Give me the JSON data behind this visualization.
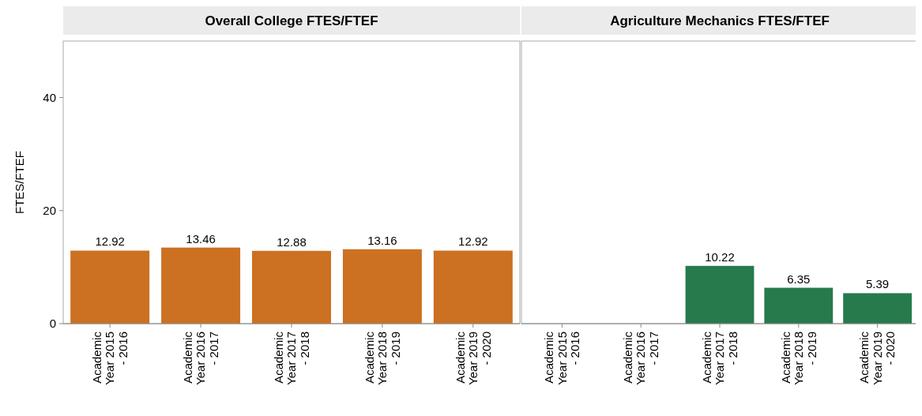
{
  "chart_data": [
    {
      "type": "bar",
      "title": "Overall College FTES/FTEF",
      "ylabel": "FTES/FTEF",
      "categories": [
        "Academic Year 2015 - 2016",
        "Academic Year 2016 - 2017",
        "Academic Year 2017 - 2018",
        "Academic Year 2018 - 2019",
        "Academic Year 2019 - 2020"
      ],
      "values": [
        12.92,
        13.46,
        12.88,
        13.16,
        12.92
      ],
      "color": "#cc7022",
      "ylim": [
        0,
        50
      ],
      "yticks": [
        0,
        20,
        40
      ],
      "data_labels": true
    },
    {
      "type": "bar",
      "title": "Agriculture Mechanics FTES/FTEF",
      "categories": [
        "Academic Year 2015 - 2016",
        "Academic Year 2016 - 2017",
        "Academic Year 2017 - 2018",
        "Academic Year 2018 - 2019",
        "Academic Year 2019 - 2020"
      ],
      "values": [
        null,
        null,
        10.22,
        6.35,
        5.39
      ],
      "color": "#267a4c",
      "ylim": [
        0,
        50
      ],
      "yticks": [
        0,
        20,
        40
      ],
      "data_labels": true,
      "tick_labels": "x"
    }
  ]
}
